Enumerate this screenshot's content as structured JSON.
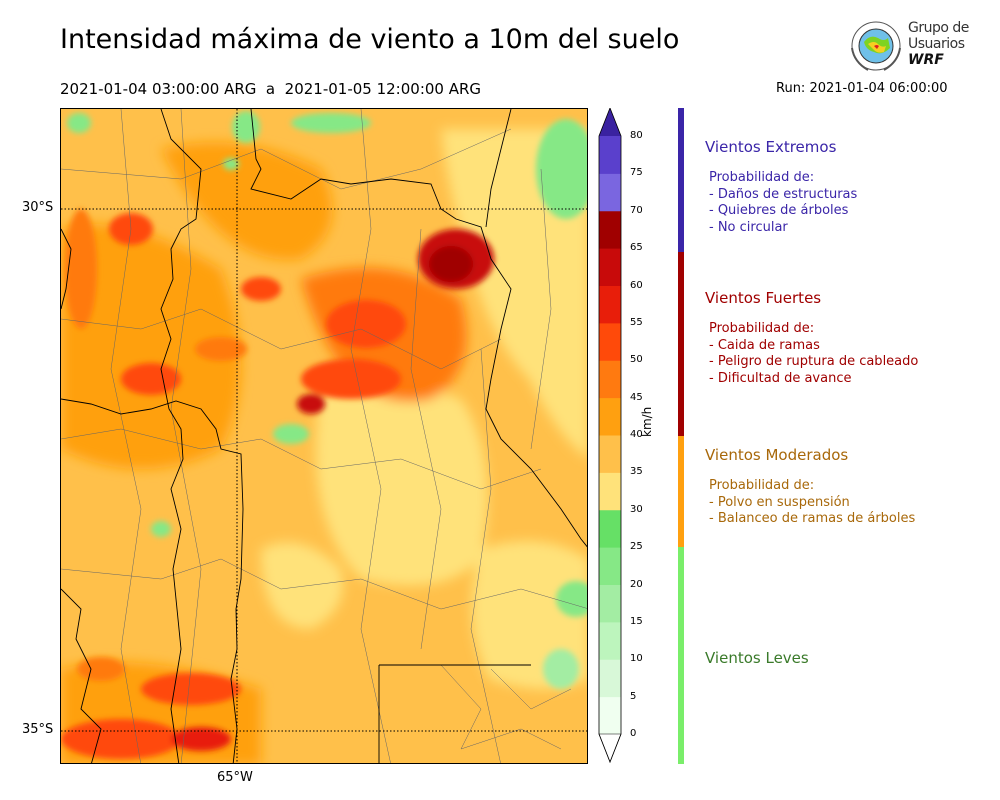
{
  "header": {
    "title": "Intensidad máxima de viento a 10m del suelo",
    "period": "2021-01-04 03:00:00 ARG  a  2021-01-05 12:00:00 ARG",
    "run": "Run: 2021-01-04 06:00:00"
  },
  "logo": {
    "line1": "Grupo de",
    "line2": "Usuarios",
    "line3": "WRF"
  },
  "map": {
    "lat_labels": [
      "30°S",
      "35°S"
    ],
    "lon_labels": [
      "65°W"
    ]
  },
  "colorbar": {
    "unit": "km/h",
    "ticks": [
      "0",
      "5",
      "10",
      "15",
      "20",
      "25",
      "30",
      "35",
      "40",
      "45",
      "50",
      "55",
      "60",
      "65",
      "70",
      "75",
      "80"
    ],
    "colors": [
      "#f0fff0",
      "#d8f8d8",
      "#bdf5bd",
      "#a3eda3",
      "#86e886",
      "#66e066",
      "#ffe27a",
      "#ffc04a",
      "#ffa010",
      "#ff7a10",
      "#ff4a0a",
      "#e81e0a",
      "#c80a0a",
      "#a00000",
      "#7a66e0",
      "#5a40cc",
      "#3e2aa8"
    ],
    "under_color": "#ffffff",
    "over_color": "#3a22a0"
  },
  "categories": [
    {
      "name": "Vientos Extremos",
      "color": "#3a25a8",
      "lines": [
        "Probabilidad de:",
        "- Daños de estructuras",
        "- Quiebres de árboles",
        "- No circular"
      ]
    },
    {
      "name": "Vientos Fuertes",
      "color": "#a00000",
      "lines": [
        "Probabilidad de:",
        "- Caida de ramas",
        "- Peligro de ruptura de cableado",
        "- Dificultad de avance"
      ]
    },
    {
      "name": "Vientos Moderados",
      "color": "#a8680a",
      "lines": [
        "Probabilidad de:",
        "- Polvo en suspensión",
        "- Balanceo de ramas de árboles"
      ]
    },
    {
      "name": "Vientos Leves",
      "color": "#3a7a2a",
      "lines": []
    }
  ],
  "category_bar_colors": [
    "#3a25a8",
    "#a00000",
    "#ffa010",
    "#7aee6a"
  ]
}
